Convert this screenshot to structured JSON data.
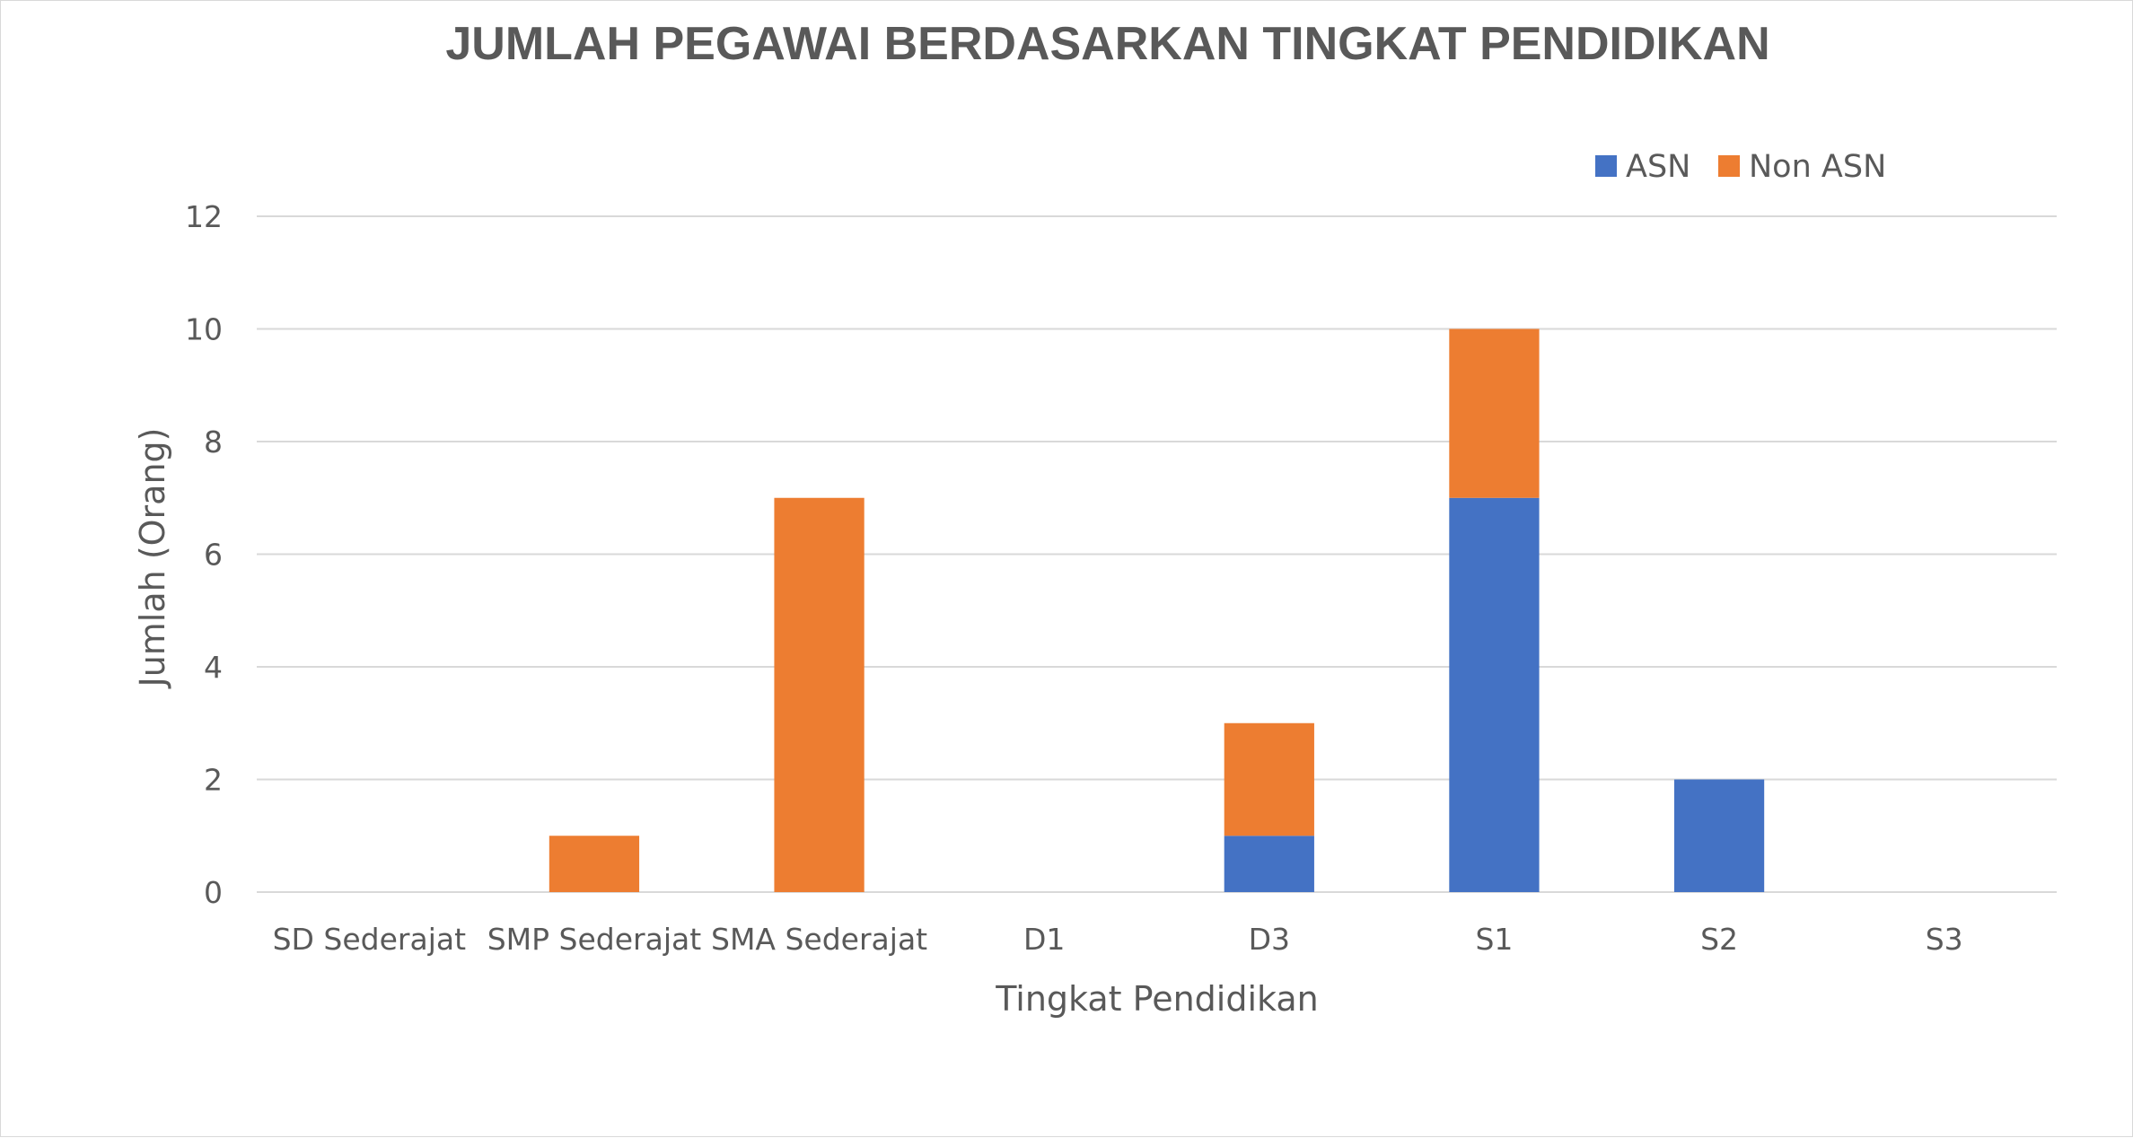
{
  "chart_data": {
    "type": "bar",
    "stacked": true,
    "title": "JUMLAH PEGAWAI BERDASARKAN TINGKAT PENDIDIKAN",
    "xlabel": "Tingkat Pendidikan",
    "ylabel": "Jumlah (Orang)",
    "categories": [
      "SD Sederajat",
      "SMP Sederajat",
      "SMA Sederajat",
      "D1",
      "D3",
      "S1",
      "S2",
      "S3"
    ],
    "series": [
      {
        "name": "ASN",
        "color": "#4472C4",
        "values": [
          0,
          0,
          0,
          0,
          1,
          7,
          2,
          0
        ]
      },
      {
        "name": "Non ASN",
        "color": "#ED7D31",
        "values": [
          0,
          1,
          7,
          0,
          2,
          3,
          0,
          0
        ]
      }
    ],
    "ylim": [
      0,
      12
    ],
    "yticks": [
      "0",
      "2",
      "4",
      "6",
      "8",
      "10",
      "12"
    ],
    "grid": true,
    "legend_position": "top-right"
  }
}
